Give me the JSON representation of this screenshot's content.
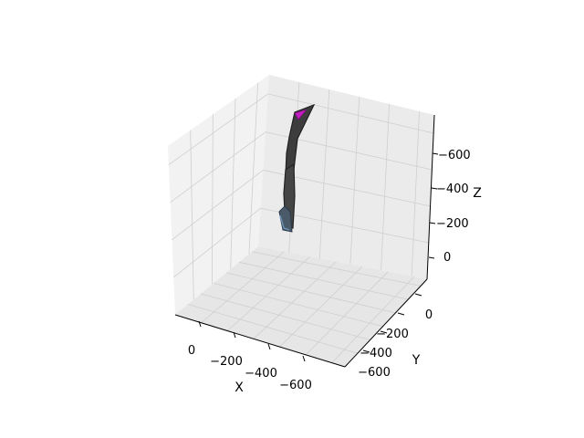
{
  "chart_data": {
    "type": "surface3d",
    "title": "",
    "xlabel": "X",
    "ylabel": "Y",
    "zlabel": "Z",
    "x_ticks": [
      {
        "value": 0,
        "label": "0"
      },
      {
        "value": -200,
        "label": "−200"
      },
      {
        "value": -400,
        "label": "−400"
      },
      {
        "value": -600,
        "label": "−600"
      }
    ],
    "y_ticks": [
      {
        "value": 0,
        "label": "0"
      },
      {
        "value": -200,
        "label": "−200"
      },
      {
        "value": -400,
        "label": "−400"
      },
      {
        "value": -600,
        "label": "−600"
      }
    ],
    "z_ticks": [
      {
        "value": 0,
        "label": "0"
      },
      {
        "value": -200,
        "label": "−200"
      },
      {
        "value": -400,
        "label": "−400"
      },
      {
        "value": -600,
        "label": "−600"
      }
    ],
    "grid": true,
    "colors": {
      "pane": "#f2f2f2",
      "pane_side": "#ebebeb",
      "grid": "#cfcfcf",
      "shape": "#3d3d3d",
      "shape_edge": "#222222",
      "shape_highlight": "#6a8fb0",
      "marker": "#c21fc2"
    }
  }
}
